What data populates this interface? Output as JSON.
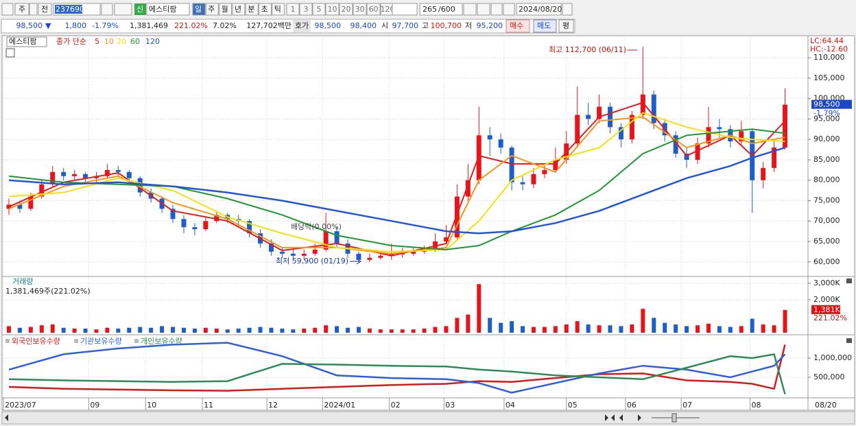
{
  "toolbar": {
    "market": "주",
    "prev": "전",
    "code": "237690",
    "new_badge": "신",
    "name": "에스티팜",
    "periods": [
      "일",
      "주",
      "월",
      "년",
      "분",
      "초",
      "틱"
    ],
    "intervals": [
      "1",
      "3",
      "5",
      "10",
      "20",
      "30",
      "60",
      "120"
    ],
    "count": "265",
    "max_count": "/600",
    "date": "2024/08/20"
  },
  "info_bar": {
    "price": "98,500",
    "direction": "▼",
    "change": "1,800",
    "change_rate": "-1.79%",
    "volume": "1,381,469",
    "volume_rate": "221.02%",
    "turnover": "7.02%",
    "amount": "127,702백만",
    "quote_label": "호가",
    "ask": "98,500",
    "bid": "98,400",
    "open_label": "시",
    "open": "97,700",
    "high_label": "고",
    "high": "100,700",
    "low_label": "저",
    "low": "95,200",
    "buy": "매수",
    "sell": "매도",
    "avg": "평"
  },
  "x_axis": {
    "xlim": [
      -0.5,
      73.1
    ],
    "xticks": [
      {
        "value": -0.5,
        "label": "2023/07"
      },
      {
        "value": 7.3,
        "label": "09"
      },
      {
        "value": 12.5,
        "label": "10"
      },
      {
        "value": 17.7,
        "label": "11"
      },
      {
        "value": 23.6,
        "label": "12"
      },
      {
        "value": 28.7,
        "label": "2024/01"
      },
      {
        "value": 34.8,
        "label": "02"
      },
      {
        "value": 39.8,
        "label": "03"
      },
      {
        "value": 45.3,
        "label": "04"
      },
      {
        "value": 51,
        "label": "05"
      },
      {
        "value": 56.4,
        "label": "06"
      },
      {
        "value": 61.5,
        "label": "07"
      },
      {
        "value": 67.8,
        "label": "08"
      }
    ],
    "end_label": "08/20"
  },
  "chart_data": [
    {
      "type": "candlestick",
      "name_label": "에스티팜",
      "ma_label": "종가 단순",
      "up_color": "#e8141b",
      "down_color": "#1d5ec9",
      "open": [
        73000,
        74000,
        73000,
        76000,
        79000,
        82000,
        81000,
        81500,
        80500,
        81000,
        82500,
        82000,
        80500,
        77000,
        75500,
        73000,
        70500,
        68500,
        68000,
        70000,
        71500,
        70500,
        70000,
        67000,
        64500,
        62500,
        62000,
        61500,
        62000,
        63000,
        67500,
        64500,
        62000,
        60500,
        61000,
        61500,
        62000,
        62000,
        62500,
        63000,
        65000,
        66000,
        76000,
        80000,
        91000,
        90000,
        88000,
        79500,
        79000,
        81500,
        82500,
        85000,
        89000,
        96000,
        95000,
        98000,
        93000,
        90000,
        96000,
        101000,
        94000,
        91000,
        86500,
        85000,
        89000,
        93000,
        92500,
        89500,
        92000,
        80000,
        83000,
        88000
      ],
      "high": [
        75500,
        75000,
        77000,
        80000,
        83500,
        83000,
        82500,
        82000,
        82000,
        84000,
        83500,
        82500,
        81000,
        78000,
        76000,
        74000,
        71500,
        69500,
        71000,
        72500,
        72000,
        71500,
        70500,
        68000,
        65500,
        63500,
        63000,
        63000,
        64500,
        72000,
        68500,
        65500,
        62500,
        62000,
        62500,
        64500,
        63500,
        63500,
        64000,
        67000,
        69000,
        79000,
        84000,
        98000,
        93000,
        91500,
        88500,
        81000,
        83000,
        84000,
        88000,
        92000,
        103000,
        99000,
        101000,
        99000,
        94000,
        97000,
        112700,
        102000,
        95000,
        92000,
        88000,
        90500,
        98000,
        95000,
        93500,
        94500,
        92500,
        84500,
        90000,
        102500
      ],
      "low": [
        71500,
        72000,
        72500,
        75500,
        78500,
        80000,
        80000,
        79500,
        79500,
        80500,
        81000,
        79500,
        76000,
        74500,
        72000,
        69500,
        67000,
        66500,
        67500,
        69500,
        69500,
        68500,
        66000,
        63500,
        61500,
        61000,
        60500,
        60500,
        61500,
        62500,
        63500,
        61000,
        59900,
        60000,
        60500,
        60500,
        61000,
        61500,
        62000,
        62500,
        64500,
        65500,
        75000,
        79000,
        86000,
        86500,
        77500,
        77500,
        78000,
        80500,
        82000,
        84000,
        88000,
        93500,
        94000,
        91500,
        88000,
        89000,
        95000,
        92500,
        89500,
        85500,
        83000,
        84000,
        88000,
        90500,
        88000,
        88500,
        72000,
        78000,
        82000,
        87500
      ],
      "close": [
        74000,
        73000,
        76000,
        79000,
        82000,
        81000,
        81500,
        80500,
        81000,
        82500,
        82000,
        80500,
        77000,
        75500,
        73000,
        70500,
        68500,
        68000,
        70000,
        71500,
        70500,
        70000,
        67000,
        64500,
        62500,
        62000,
        61500,
        62000,
        63000,
        67500,
        64500,
        62000,
        60500,
        61000,
        61500,
        62000,
        62000,
        62500,
        63000,
        65000,
        66000,
        76000,
        80000,
        91000,
        90000,
        88000,
        79500,
        79000,
        81500,
        82500,
        85000,
        89000,
        96000,
        95000,
        98000,
        93000,
        90000,
        96000,
        101000,
        94000,
        91000,
        86500,
        85000,
        89000,
        93000,
        92500,
        89500,
        92000,
        80000,
        83000,
        88000,
        98500
      ],
      "series": [
        {
          "name": "5",
          "color": "#e41a1c",
          "x": [
            0,
            5,
            10,
            15,
            20,
            25,
            30,
            35,
            40,
            43,
            46,
            50,
            54,
            58,
            62,
            66,
            68,
            71
          ],
          "values": [
            73500,
            79500,
            81800,
            72500,
            70000,
            62800,
            64500,
            61500,
            64500,
            86000,
            84000,
            84000,
            95500,
            99000,
            86000,
            91000,
            86000,
            94500
          ]
        },
        {
          "name": "10",
          "color": "#f7941d",
          "x": [
            0,
            5,
            10,
            15,
            20,
            25,
            30,
            35,
            40,
            43,
            46,
            50,
            54,
            58,
            62,
            66,
            68,
            71
          ],
          "values": [
            73000,
            78500,
            81000,
            74500,
            70500,
            63500,
            63500,
            62000,
            63500,
            80000,
            86000,
            82000,
            94500,
            95500,
            88000,
            91000,
            89000,
            90500
          ]
        },
        {
          "name": "20",
          "color": "#f2e20c",
          "x": [
            0,
            5,
            10,
            15,
            20,
            25,
            30,
            35,
            40,
            43,
            46,
            50,
            54,
            58,
            62,
            66,
            68,
            71
          ],
          "values": [
            76000,
            77000,
            80500,
            77500,
            71000,
            67000,
            63500,
            62500,
            63000,
            70000,
            80000,
            85000,
            88000,
            96500,
            93000,
            90500,
            90000,
            89500
          ]
        },
        {
          "name": "60",
          "color": "#1e9632",
          "x": [
            0,
            5,
            10,
            15,
            20,
            25,
            30,
            35,
            40,
            43,
            46,
            50,
            54,
            58,
            62,
            66,
            68,
            71
          ],
          "values": [
            81000,
            79500,
            79000,
            78500,
            75500,
            71500,
            66500,
            64000,
            63000,
            64000,
            67500,
            71500,
            77500,
            86500,
            91000,
            92000,
            92500,
            91500
          ]
        },
        {
          "name": "120",
          "color": "#2255dd",
          "x": [
            0,
            5,
            10,
            15,
            20,
            25,
            30,
            35,
            40,
            43,
            46,
            50,
            54,
            58,
            62,
            66,
            68,
            71
          ],
          "values": [
            80000,
            79000,
            79500,
            78500,
            77000,
            75000,
            72500,
            70000,
            67500,
            67000,
            67500,
            69500,
            72500,
            76500,
            80500,
            83500,
            85500,
            88000
          ]
        }
      ],
      "ylim": [
        56600,
        114900
      ],
      "yticks": [
        {
          "value": 110000,
          "label": "110,000"
        },
        {
          "value": 105000,
          "label": "105,000"
        },
        {
          "value": 100000,
          "label": "100,000"
        },
        {
          "value": 95000,
          "label": "95,000"
        },
        {
          "value": 90000,
          "label": "90,000"
        },
        {
          "value": 85000,
          "label": "85,000"
        },
        {
          "value": 80000,
          "label": "80,000"
        },
        {
          "value": 75000,
          "label": "75,000"
        },
        {
          "value": 70000,
          "label": "70,000"
        },
        {
          "value": 65000,
          "label": "65,000"
        },
        {
          "value": 60000,
          "label": "60,000"
        }
      ],
      "grid": true,
      "annotations": [
        "최고 112,700 (06/11)",
        "최저 59,900 (01/19)",
        "배당락(0.00%)"
      ],
      "lc": "LC:64.44",
      "hc": "HC:-12.60",
      "last_price": {
        "value": 98500,
        "label": "98,500"
      },
      "last_change": "-1.79%"
    },
    {
      "type": "bar",
      "title": "거래량",
      "subtitle": "1,381,469주(221.02%)",
      "values": [
        400000,
        300000,
        350000,
        450000,
        500000,
        300000,
        250000,
        250000,
        200000,
        300000,
        250000,
        300000,
        350000,
        300000,
        400000,
        350000,
        300000,
        250000,
        300000,
        250000,
        200000,
        250000,
        300000,
        350000,
        300000,
        250000,
        200000,
        250000,
        300000,
        450000,
        400000,
        300000,
        350000,
        250000,
        200000,
        200000,
        200000,
        200000,
        250000,
        350000,
        400000,
        900000,
        1100000,
        2950000,
        900000,
        600000,
        700000,
        400000,
        350000,
        350000,
        400000,
        500000,
        700000,
        500000,
        450000,
        450000,
        400000,
        500000,
        1450000,
        900000,
        600000,
        500000,
        400000,
        450000,
        550000,
        400000,
        350000,
        400000,
        850000,
        500000,
        450000,
        1381469
      ],
      "ylim": [
        0,
        3375000
      ],
      "yticks": [
        {
          "value": 3000000,
          "label": "3,000K"
        },
        {
          "value": 2000000,
          "label": "2,000K"
        }
      ],
      "grid": true,
      "last_volume": {
        "value": 1381000,
        "label": "1,381K"
      },
      "last_rate": "221.02%"
    },
    {
      "type": "line",
      "x": [
        0,
        5,
        10,
        15,
        20,
        25,
        30,
        35,
        40,
        43,
        46,
        50,
        54,
        58,
        62,
        66,
        68,
        70,
        71
      ],
      "series": [
        {
          "name": "외국인보유수량",
          "color": "#d7191c",
          "values": [
            250000,
            200000,
            180000,
            160000,
            150000,
            200000,
            250000,
            300000,
            330000,
            400000,
            380000,
            480000,
            580000,
            600000,
            420000,
            380000,
            330000,
            200000,
            1350000
          ]
        },
        {
          "name": "기관보유수량",
          "color": "#2f5fe0",
          "values": [
            700000,
            1100000,
            1250000,
            1350000,
            1400000,
            1050000,
            550000,
            480000,
            450000,
            350000,
            100000,
            350000,
            600000,
            800000,
            700000,
            500000,
            650000,
            800000,
            1100000
          ]
        },
        {
          "name": "개인보유수량",
          "color": "#2e8b57",
          "values": [
            450000,
            420000,
            400000,
            380000,
            400000,
            850000,
            830000,
            800000,
            780000,
            700000,
            650000,
            550000,
            500000,
            450000,
            750000,
            1050000,
            1000000,
            1100000,
            60000
          ]
        }
      ],
      "ylim": [
        0,
        1535000
      ],
      "yticks": [
        {
          "value": 1000000,
          "label": "1,000,000"
        },
        {
          "value": 500000,
          "label": "500,000"
        }
      ],
      "grid": true
    }
  ]
}
